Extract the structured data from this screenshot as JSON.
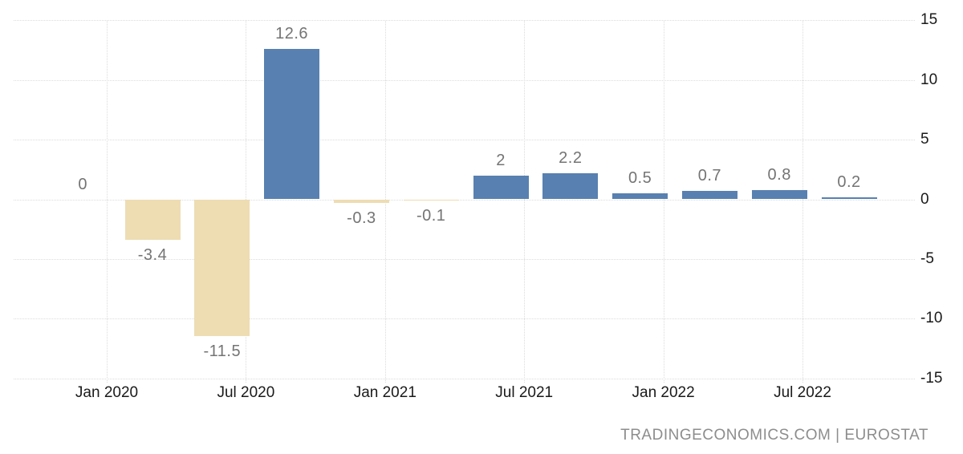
{
  "chart_data": {
    "type": "bar",
    "title": "",
    "xlabel": "",
    "ylabel": "",
    "values": [
      0,
      -3.4,
      -11.5,
      12.6,
      -0.3,
      -0.1,
      2,
      2.2,
      0.5,
      0.7,
      0.8,
      0.2
    ],
    "value_labels": [
      "0",
      "-3.4",
      "-11.5",
      "12.6",
      "-0.3",
      "-0.1",
      "2",
      "2.2",
      "0.5",
      "0.7",
      "0.8",
      "0.2"
    ],
    "x_tick_labels": [
      "Jan 2020",
      "Jul 2020",
      "Jan 2021",
      "Jul 2021",
      "Jan 2022",
      "Jul 2022"
    ],
    "y_tick_labels": [
      "15",
      "10",
      "5",
      "0",
      "-5",
      "-10",
      "-15"
    ],
    "y_tick_values": [
      15,
      10,
      5,
      0,
      -5,
      -10,
      -15
    ],
    "ylim": [
      -15,
      15
    ],
    "grid": "dotted",
    "legend_position": "none",
    "positive_bar_color": "#5880B0",
    "negative_bar_color": "#EEDDB3",
    "attribution": "TRADINGECONOMICS.COM | EUROSTAT"
  }
}
